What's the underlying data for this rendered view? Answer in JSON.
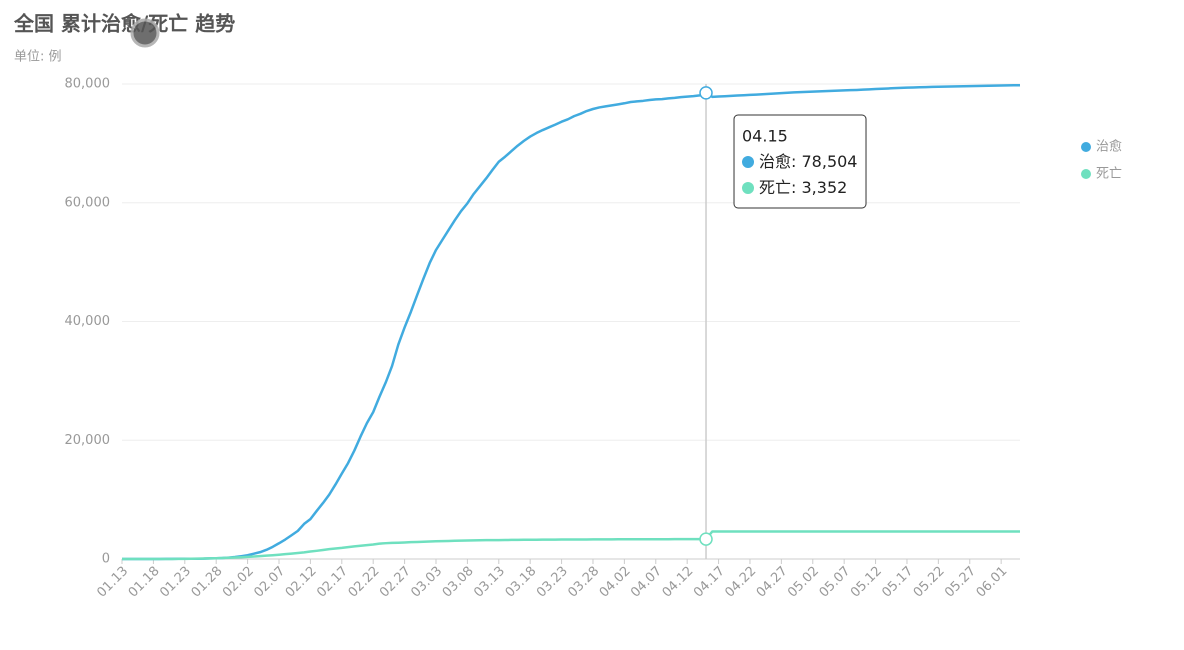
{
  "chart_data": {
    "type": "line",
    "title": "全国 累计治愈/死亡 趋势",
    "subtitle": "单位: 例",
    "categories": [
      "01.13",
      "01.14",
      "01.15",
      "01.16",
      "01.17",
      "01.18",
      "01.19",
      "01.20",
      "01.21",
      "01.22",
      "01.23",
      "01.24",
      "01.25",
      "01.26",
      "01.27",
      "01.28",
      "01.29",
      "01.30",
      "01.31",
      "02.01",
      "02.02",
      "02.03",
      "02.04",
      "02.05",
      "02.06",
      "02.07",
      "02.08",
      "02.09",
      "02.10",
      "02.11",
      "02.12",
      "02.13",
      "02.14",
      "02.15",
      "02.16",
      "02.17",
      "02.18",
      "02.19",
      "02.20",
      "02.21",
      "02.22",
      "02.23",
      "02.24",
      "02.25",
      "02.26",
      "02.27",
      "02.28",
      "02.29",
      "03.01",
      "03.02",
      "03.03",
      "03.04",
      "03.05",
      "03.06",
      "03.07",
      "03.08",
      "03.09",
      "03.10",
      "03.11",
      "03.12",
      "03.13",
      "03.14",
      "03.15",
      "03.16",
      "03.17",
      "03.18",
      "03.19",
      "03.20",
      "03.21",
      "03.22",
      "03.23",
      "03.24",
      "03.25",
      "03.26",
      "03.27",
      "03.28",
      "03.29",
      "03.30",
      "03.31",
      "04.01",
      "04.02",
      "04.03",
      "04.04",
      "04.05",
      "04.06",
      "04.07",
      "04.08",
      "04.09",
      "04.10",
      "04.11",
      "04.12",
      "04.13",
      "04.14",
      "04.15",
      "04.16",
      "04.17",
      "04.18",
      "04.19",
      "04.20",
      "04.21",
      "04.22",
      "04.23",
      "04.24",
      "04.25",
      "04.26",
      "04.27",
      "04.28",
      "04.29",
      "04.30",
      "05.01",
      "05.02",
      "05.03",
      "05.04",
      "05.05",
      "05.06",
      "05.07",
      "05.08",
      "05.09",
      "05.10",
      "05.11",
      "05.12",
      "05.13",
      "05.14",
      "05.15",
      "05.16",
      "05.17",
      "05.18",
      "05.19",
      "05.20",
      "05.21",
      "05.22",
      "05.23",
      "05.24",
      "05.25",
      "05.26",
      "05.27",
      "05.28",
      "05.29",
      "05.30",
      "05.31",
      "06.01",
      "06.02",
      "06.03",
      "06.04"
    ],
    "series": [
      {
        "name": "治愈",
        "color": "#41abdf",
        "values": [
          0,
          0,
          0,
          0,
          0,
          0,
          0,
          25,
          28,
          34,
          38,
          49,
          51,
          60,
          103,
          124,
          171,
          243,
          328,
          475,
          632,
          892,
          1153,
          1540,
          2050,
          2649,
          3281,
          3996,
          4740,
          5911,
          6723,
          8096,
          9419,
          10844,
          12552,
          14376,
          16155,
          18264,
          20659,
          22888,
          24734,
          27323,
          29745,
          32495,
          36117,
          39002,
          41625,
          44462,
          47204,
          49856,
          52045,
          53726,
          55404,
          57065,
          58600,
          59897,
          61475,
          62793,
          64111,
          65541,
          66911,
          67749,
          68679,
          69601,
          70420,
          71150,
          71740,
          72244,
          72703,
          73159,
          73650,
          74051,
          74588,
          74978,
          75448,
          75790,
          76052,
          76238,
          76405,
          76571,
          76751,
          76964,
          77078,
          77167,
          77310,
          77410,
          77455,
          77575,
          77663,
          77791,
          77877,
          77956,
          78079,
          78504,
          77838,
          77892,
          77944,
          78000,
          78056,
          78111,
          78159,
          78220,
          78280,
          78340,
          78400,
          78470,
          78530,
          78580,
          78630,
          78680,
          78720,
          78760,
          78800,
          78840,
          78880,
          78920,
          78960,
          79000,
          79050,
          79100,
          79150,
          79200,
          79250,
          79300,
          79340,
          79380,
          79420,
          79450,
          79480,
          79510,
          79540,
          79560,
          79580,
          79600,
          79620,
          79640,
          79660,
          79680,
          79700,
          79720,
          79740,
          79760,
          79780,
          79800
        ]
      },
      {
        "name": "死亡",
        "color": "#6fe0bf",
        "values": [
          1,
          1,
          2,
          2,
          2,
          3,
          3,
          6,
          9,
          17,
          25,
          41,
          56,
          80,
          106,
          132,
          170,
          213,
          259,
          304,
          361,
          425,
          490,
          563,
          636,
          722,
          811,
          908,
          1016,
          1113,
          1259,
          1380,
          1523,
          1665,
          1770,
          1868,
          2004,
          2118,
          2236,
          2345,
          2442,
          2592,
          2663,
          2715,
          2744,
          2788,
          2835,
          2870,
          2912,
          2943,
          2981,
          3012,
          3042,
          3070,
          3097,
          3119,
          3136,
          3158,
          3169,
          3176,
          3189,
          3199,
          3213,
          3226,
          3237,
          3245,
          3248,
          3255,
          3261,
          3270,
          3277,
          3281,
          3287,
          3292,
          3295,
          3300,
          3304,
          3305,
          3312,
          3318,
          3322,
          3326,
          3329,
          3331,
          3331,
          3333,
          3335,
          3336,
          3339,
          3339,
          3341,
          3343,
          3345,
          3352,
          4632,
          4632,
          4632,
          4632,
          4632,
          4632,
          4632,
          4632,
          4632,
          4632,
          4632,
          4632,
          4632,
          4632,
          4632,
          4633,
          4633,
          4633,
          4633,
          4633,
          4633,
          4633,
          4633,
          4633,
          4633,
          4633,
          4633,
          4633,
          4633,
          4633,
          4633,
          4633,
          4633,
          4633,
          4633,
          4633,
          4633,
          4633,
          4633,
          4633,
          4633,
          4633,
          4633,
          4633,
          4633,
          4633,
          4634,
          4634,
          4634,
          4634
        ]
      }
    ],
    "ylim": [
      0,
      80000
    ],
    "yticks": [
      0,
      {
        "value": 20000,
        "label": "20,000"
      },
      {
        "value": 40000,
        "label": "40,000"
      },
      {
        "value": 60000,
        "label": "60,000"
      },
      {
        "value": 80000,
        "label": "80,000"
      }
    ],
    "grid": true,
    "legend": "right",
    "tooltip": {
      "x": "04.15",
      "labels": [
        "78,504",
        "3,352"
      ]
    }
  }
}
